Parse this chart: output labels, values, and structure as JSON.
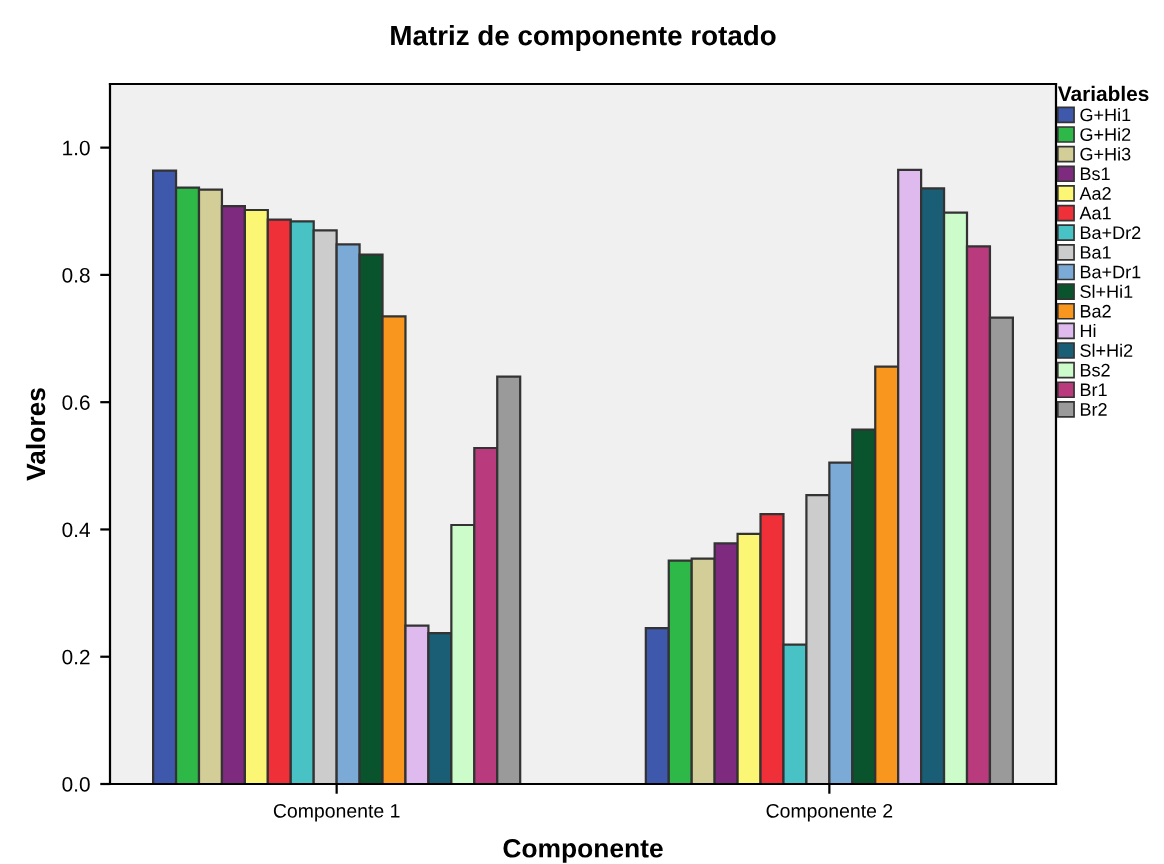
{
  "chart_data": {
    "type": "bar",
    "title": "Matriz de componente rotado",
    "xlabel": "Componente",
    "ylabel": "Valores",
    "legend_title": "Variables",
    "categories": [
      "Componente 1",
      "Componente 2"
    ],
    "series": [
      {
        "name": "G+Hi1",
        "color": "#3e58ac",
        "values": [
          0.964,
          0.245
        ]
      },
      {
        "name": "G+Hi2",
        "color": "#2eb848",
        "values": [
          0.937,
          0.351
        ]
      },
      {
        "name": "G+Hi3",
        "color": "#d3ce98",
        "values": [
          0.934,
          0.354
        ]
      },
      {
        "name": "Bs1",
        "color": "#7e2a7f",
        "values": [
          0.908,
          0.378
        ]
      },
      {
        "name": "Aa2",
        "color": "#fbf774",
        "values": [
          0.902,
          0.393
        ]
      },
      {
        "name": "Aa1",
        "color": "#ef3038",
        "values": [
          0.887,
          0.424
        ]
      },
      {
        "name": "Ba+Dr2",
        "color": "#48c2c5",
        "values": [
          0.884,
          0.219
        ]
      },
      {
        "name": "Ba1",
        "color": "#cccccc",
        "values": [
          0.87,
          0.454
        ]
      },
      {
        "name": "Ba+Dr1",
        "color": "#7caad6",
        "values": [
          0.848,
          0.505
        ]
      },
      {
        "name": "Sl+Hi1",
        "color": "#0a542d",
        "values": [
          0.832,
          0.557
        ]
      },
      {
        "name": "Ba2",
        "color": "#f8961e",
        "values": [
          0.735,
          0.656
        ]
      },
      {
        "name": "Hi",
        "color": "#dfbaee",
        "values": [
          0.249,
          0.965
        ]
      },
      {
        "name": "Sl+Hi2",
        "color": "#195e74",
        "values": [
          0.237,
          0.936
        ]
      },
      {
        "name": "Bs2",
        "color": "#cdfccb",
        "values": [
          0.407,
          0.898
        ]
      },
      {
        "name": "Br1",
        "color": "#b93b7d",
        "values": [
          0.528,
          0.845
        ]
      },
      {
        "name": "Br2",
        "color": "#9a9a9a",
        "values": [
          0.64,
          0.733
        ]
      }
    ],
    "ylim": [
      0,
      1.1
    ],
    "yticks": [
      {
        "value": 0,
        "label": "0.0"
      },
      {
        "value": 0.2,
        "label": "0.2"
      },
      {
        "value": 0.4,
        "label": "0.4"
      },
      {
        "value": 0.6,
        "label": "0.6"
      },
      {
        "value": 0.8,
        "label": "0.8"
      },
      {
        "value": 1.0,
        "label": "1.0"
      }
    ],
    "grid": false,
    "legend": "right"
  }
}
